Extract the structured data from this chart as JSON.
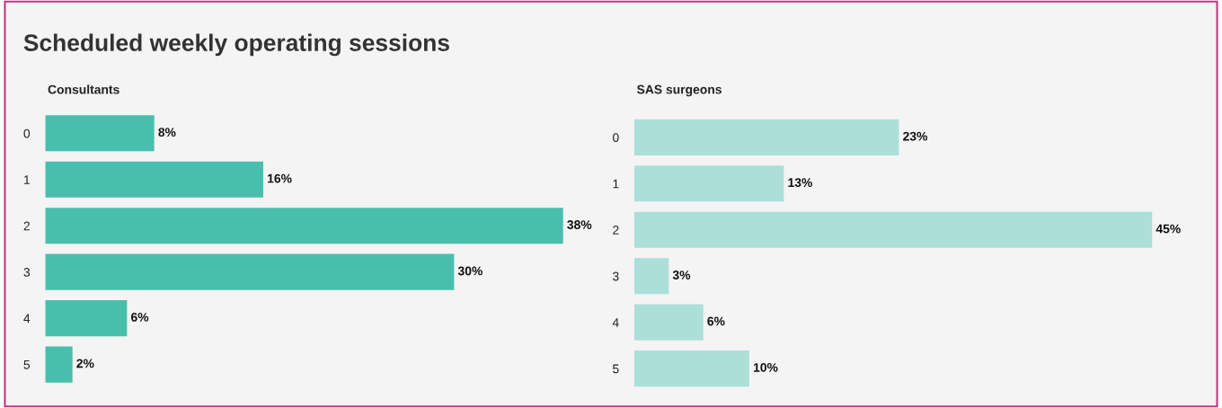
{
  "chart_data": [
    {
      "type": "bar",
      "orientation": "horizontal",
      "title": "Scheduled weekly operating sessions",
      "subtitle": "Consultants",
      "categories": [
        "0",
        "1",
        "2",
        "3",
        "4",
        "5"
      ],
      "values": [
        8,
        16,
        38,
        30,
        6,
        2
      ],
      "color": "#48bfac",
      "value_labels": [
        "8%",
        "16%",
        "38%",
        "30%",
        "6%",
        "2%"
      ],
      "tick_labels": "y",
      "grid": false,
      "legend": false
    },
    {
      "type": "bar",
      "orientation": "horizontal",
      "subtitle": "SAS surgeons",
      "categories": [
        "0",
        "1",
        "2",
        "3",
        "4",
        "5"
      ],
      "values": [
        23,
        13,
        45,
        3,
        6,
        10
      ],
      "color": "#addfd9",
      "value_labels": [
        "23%",
        "13%",
        "45%",
        "3%",
        "6%",
        "10%"
      ],
      "tick_labels": "y",
      "grid": false,
      "legend": false
    }
  ]
}
